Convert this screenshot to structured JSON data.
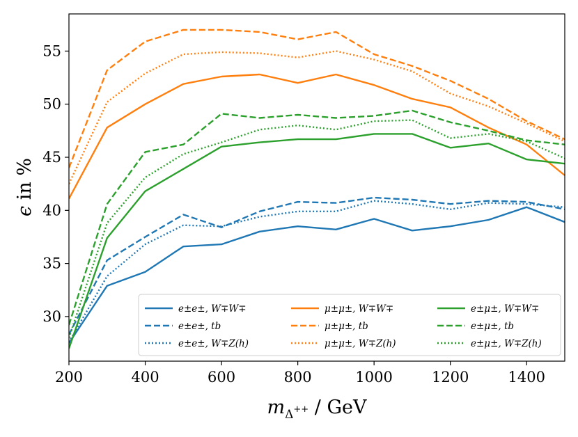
{
  "chart_data": {
    "type": "line",
    "xlabel": "m_{Δ^{++}} / GeV",
    "ylabel": "ϵ in %",
    "xlim": [
      200,
      1500
    ],
    "ylim": [
      25.8,
      58.5
    ],
    "xticks": [
      200,
      400,
      600,
      800,
      1000,
      1200,
      1400
    ],
    "yticks": [
      30,
      35,
      40,
      45,
      50,
      55
    ],
    "grid": false,
    "legend_position": "lower-right",
    "legend_columns": 3,
    "x": [
      200,
      300,
      400,
      500,
      600,
      700,
      800,
      900,
      1000,
      1100,
      1200,
      1300,
      1400,
      1500
    ],
    "series": [
      {
        "name": "e±e±, W∓W∓",
        "color": "#1f77b4",
        "dash": "solid",
        "values": [
          27.5,
          32.9,
          34.2,
          36.6,
          36.8,
          38.0,
          38.5,
          38.2,
          39.2,
          38.1,
          38.5,
          39.1,
          40.3,
          38.9
        ]
      },
      {
        "name": "e±e±, tb",
        "color": "#1f77b4",
        "dash": "dashed",
        "values": [
          28.3,
          35.3,
          37.5,
          39.6,
          38.4,
          39.9,
          40.8,
          40.7,
          41.2,
          41.0,
          40.6,
          40.9,
          40.8,
          40.1
        ]
      },
      {
        "name": "e±e±, W∓Z(h)",
        "color": "#1f77b4",
        "dash": "dotted",
        "values": [
          27.6,
          33.8,
          36.8,
          38.6,
          38.5,
          39.4,
          39.9,
          39.9,
          40.9,
          40.6,
          40.1,
          40.7,
          40.6,
          40.3
        ]
      },
      {
        "name": "μ±μ±, W∓W∓",
        "color": "#ff7f0e",
        "dash": "solid",
        "values": [
          41.1,
          47.8,
          50.0,
          51.9,
          52.6,
          52.8,
          52.0,
          52.8,
          51.8,
          50.5,
          49.7,
          47.8,
          46.2,
          43.3
        ]
      },
      {
        "name": "μ±μ±, tb",
        "color": "#ff7f0e",
        "dash": "dashed",
        "values": [
          44.0,
          53.2,
          55.9,
          57.0,
          57.0,
          56.8,
          56.1,
          56.8,
          54.7,
          53.6,
          52.2,
          50.5,
          48.4,
          46.7
        ]
      },
      {
        "name": "μ±μ±, W∓Z(h)",
        "color": "#ff7f0e",
        "dash": "dotted",
        "values": [
          42.5,
          50.2,
          52.9,
          54.7,
          54.9,
          54.8,
          54.4,
          55.0,
          54.2,
          53.1,
          51.0,
          49.8,
          48.2,
          46.5
        ]
      },
      {
        "name": "e±μ±, W∓W∓",
        "color": "#2ca02c",
        "dash": "solid",
        "values": [
          27.0,
          37.4,
          41.8,
          43.9,
          46.0,
          46.4,
          46.7,
          46.7,
          47.2,
          47.2,
          45.9,
          46.3,
          44.8,
          44.4
        ]
      },
      {
        "name": "e±μ±, tb",
        "color": "#2ca02c",
        "dash": "dashed",
        "values": [
          29.2,
          40.6,
          45.5,
          46.2,
          49.1,
          48.7,
          49.0,
          48.7,
          48.9,
          49.4,
          48.3,
          47.5,
          46.6,
          46.2
        ]
      },
      {
        "name": "e±μ±, W∓Z(h)",
        "color": "#2ca02c",
        "dash": "dotted",
        "values": [
          28.0,
          38.8,
          43.1,
          45.3,
          46.4,
          47.6,
          48.0,
          47.6,
          48.4,
          48.5,
          46.8,
          47.2,
          46.5,
          44.9
        ]
      }
    ]
  }
}
